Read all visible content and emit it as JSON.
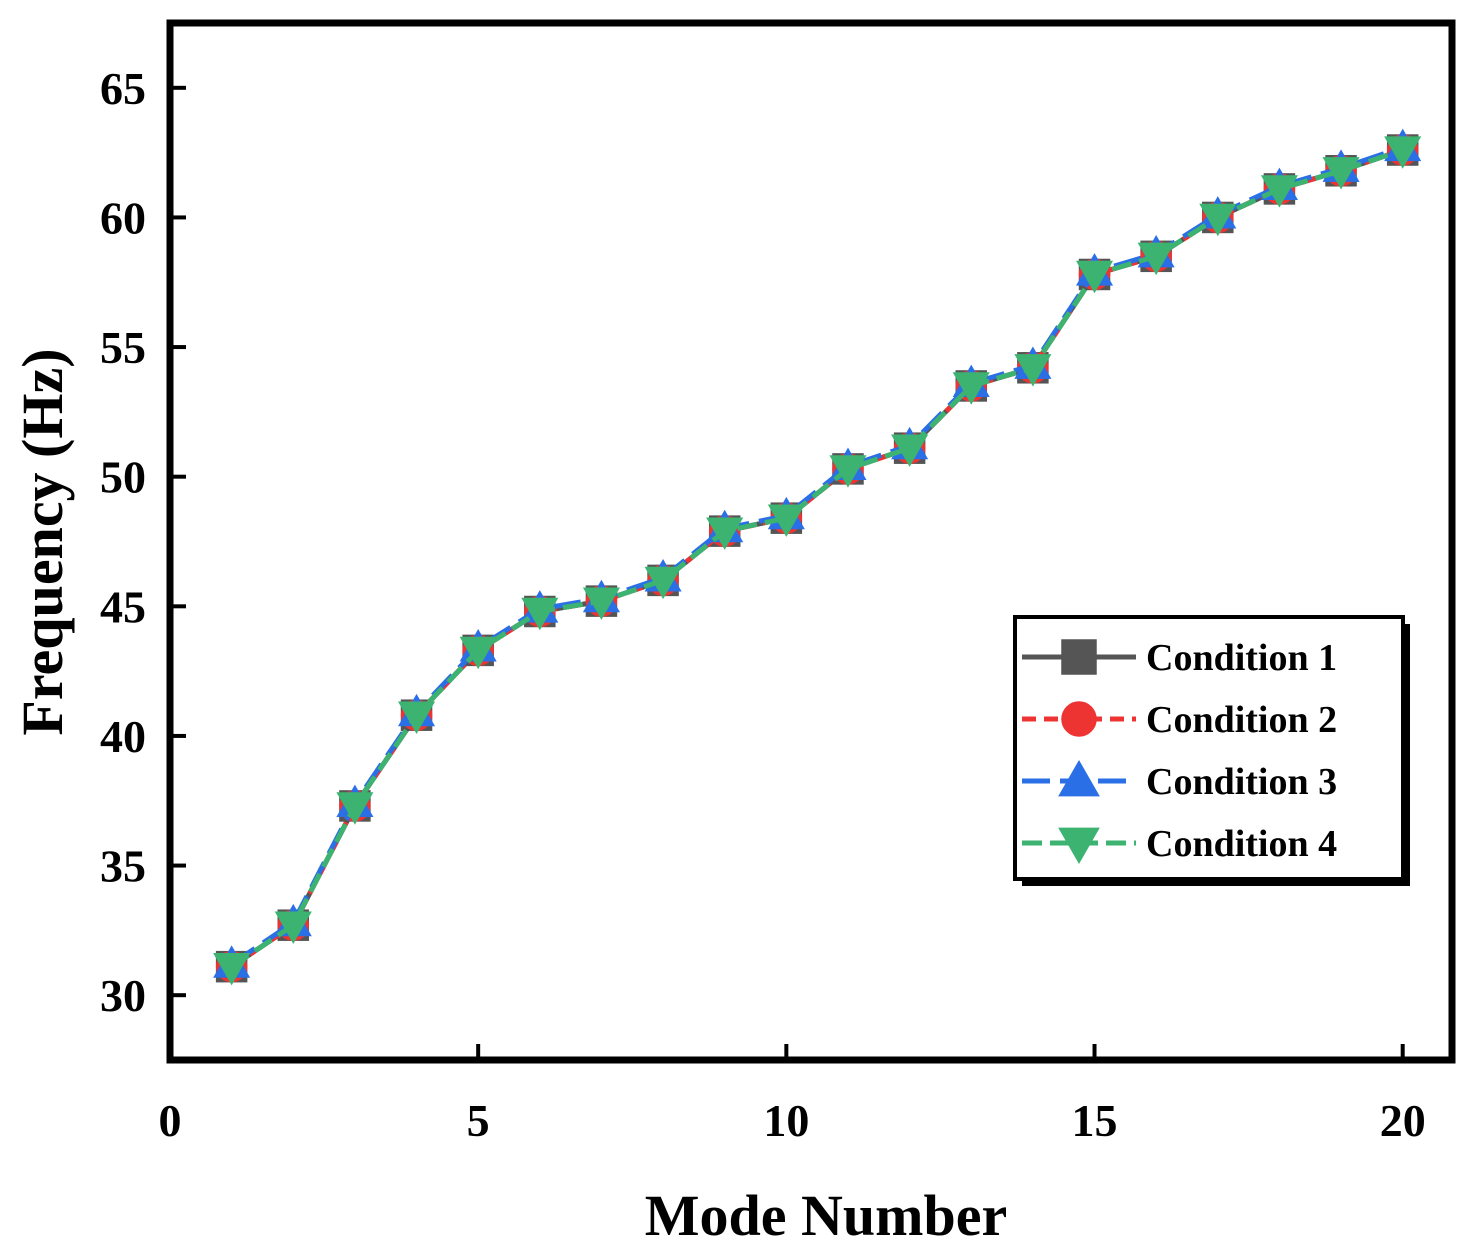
{
  "chart_data": {
    "type": "line",
    "title": "",
    "xlabel": "Mode Number",
    "ylabel": "Frequency (Hz)",
    "xlim": [
      0,
      20.8
    ],
    "ylim": [
      27.5,
      67.5
    ],
    "x_ticks": [
      0,
      5,
      10,
      15,
      20
    ],
    "y_ticks": [
      30,
      35,
      40,
      45,
      50,
      55,
      60,
      65
    ],
    "grid": false,
    "legend_position": "lower-right",
    "x": [
      1,
      2,
      3,
      4,
      5,
      6,
      7,
      8,
      9,
      10,
      11,
      12,
      13,
      14,
      15,
      16,
      17,
      18,
      19,
      20
    ],
    "series": [
      {
        "name": "Condition 1",
        "color": "#555555",
        "dash": "",
        "marker": "square",
        "values": [
          31.1,
          32.7,
          37.3,
          40.8,
          43.3,
          44.8,
          45.2,
          46.0,
          47.9,
          48.4,
          50.3,
          51.1,
          53.5,
          54.2,
          57.8,
          58.5,
          60.0,
          61.1,
          61.8,
          62.6
        ]
      },
      {
        "name": "Condition 2",
        "color": "#ee3333",
        "dash": "14 8",
        "marker": "circle",
        "values": [
          31.1,
          32.7,
          37.3,
          40.8,
          43.3,
          44.8,
          45.2,
          46.0,
          47.9,
          48.4,
          50.3,
          51.1,
          53.5,
          54.2,
          57.8,
          58.5,
          60.0,
          61.1,
          61.8,
          62.6
        ]
      },
      {
        "name": "Condition 3",
        "color": "#2a6fe6",
        "dash": "28 10",
        "marker": "triangle-up",
        "values": [
          31.2,
          32.8,
          37.4,
          40.9,
          43.4,
          44.9,
          45.3,
          46.1,
          48.0,
          48.5,
          50.4,
          51.2,
          53.6,
          54.3,
          57.9,
          58.6,
          60.1,
          61.2,
          61.9,
          62.7
        ]
      },
      {
        "name": "Condition 4",
        "color": "#3cb371",
        "dash": "20 8",
        "marker": "triangle-down",
        "values": [
          31.1,
          32.7,
          37.3,
          40.8,
          43.3,
          44.8,
          45.2,
          46.0,
          47.9,
          48.4,
          50.3,
          51.1,
          53.5,
          54.2,
          57.8,
          58.5,
          60.0,
          61.1,
          61.8,
          62.6
        ]
      }
    ]
  }
}
